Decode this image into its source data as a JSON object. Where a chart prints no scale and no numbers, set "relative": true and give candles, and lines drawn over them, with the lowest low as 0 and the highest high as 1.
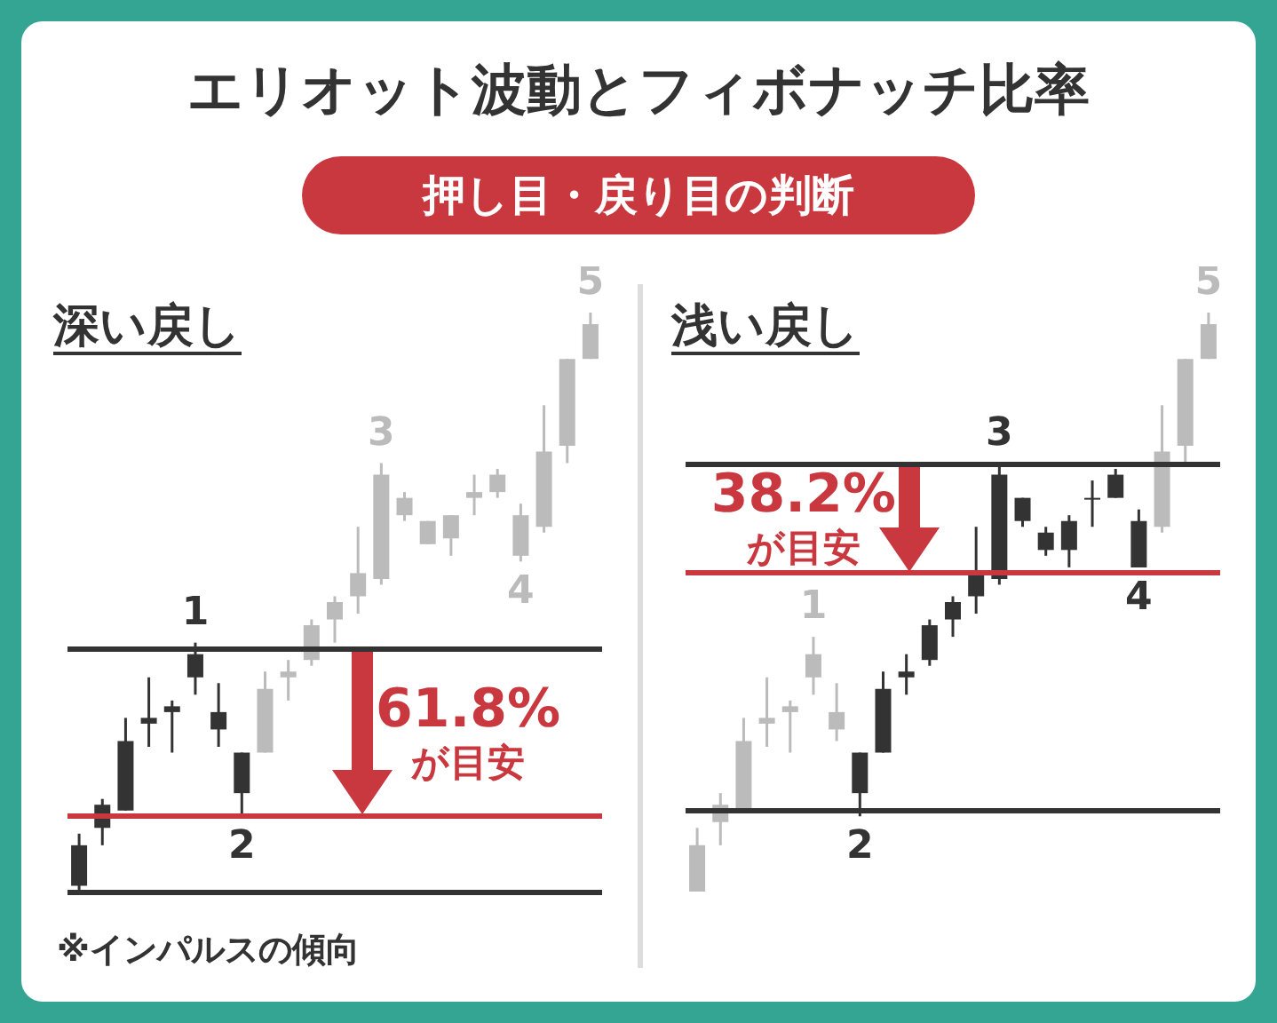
{
  "chart_data": [
    {
      "type": "other",
      "title": "エリオット波動とフィボナッチ比率",
      "subtitle": "押し目・戻り目の判断",
      "color": "#c9383e"
    },
    {
      "type": "candlestick",
      "title": "深い戻し",
      "relative": true,
      "annotations": [
        "※インパルスの傾向"
      ],
      "categories": [
        null,
        null,
        null,
        null,
        null,
        null,
        null,
        null,
        null,
        null,
        null,
        null,
        null,
        null,
        null,
        null,
        null,
        null,
        null,
        null,
        null,
        null,
        null
      ],
      "ohlc": [
        [
          0.01,
          0.1,
          0,
          0.08
        ],
        [
          0.11,
          0.16,
          0.08,
          0.15
        ],
        [
          0.14,
          0.3,
          0.14,
          0.26
        ],
        [
          0.29,
          0.37,
          0.25,
          0.3
        ],
        [
          0.31,
          0.33,
          0.24,
          0.32
        ],
        [
          0.37,
          0.43,
          0.34,
          0.41
        ],
        [
          0.28,
          0.36,
          0.25,
          0.31
        ],
        [
          0.17,
          0.24,
          0.13,
          0.24
        ],
        [
          0.24,
          0.38,
          0.24,
          0.35
        ],
        [
          0.37,
          0.4,
          0.33,
          0.38
        ],
        [
          0.4,
          0.47,
          0.39,
          0.46
        ],
        [
          0.47,
          0.51,
          0.43,
          0.5
        ],
        [
          0.51,
          0.63,
          0.48,
          0.55
        ],
        [
          0.54,
          0.74,
          0.53,
          0.72
        ],
        [
          0.65,
          0.69,
          0.64,
          0.68
        ],
        [
          0.6,
          0.64,
          0.6,
          0.64
        ],
        [
          0.61,
          0.65,
          0.58,
          0.65
        ],
        [
          0.68,
          0.72,
          0.65,
          0.69
        ],
        [
          0.69,
          0.73,
          0.68,
          0.72
        ],
        [
          0.58,
          0.67,
          0.57,
          0.65
        ],
        [
          0.63,
          0.84,
          0.62,
          0.76
        ],
        [
          0.77,
          0.92,
          0.74,
          0.92
        ],
        [
          0.92,
          1.0,
          0.92,
          0.98
        ]
      ],
      "colors": [
        "#333333",
        "#333333",
        "#333333",
        "#333333",
        "#333333",
        "#333333",
        "#333333",
        "#333333",
        "#bbbbbb",
        "#bbbbbb",
        "#bbbbbb",
        "#bbbbbb",
        "#bbbbbb",
        "#bbbbbb",
        "#bbbbbb",
        "#bbbbbb",
        "#bbbbbb",
        "#bbbbbb",
        "#bbbbbb",
        "#bbbbbb",
        "#bbbbbb",
        "#bbbbbb",
        "#bbbbbb"
      ],
      "value_labels": [
        null,
        null,
        null,
        null,
        null,
        "1",
        null,
        "2",
        null,
        null,
        null,
        null,
        null,
        "3",
        null,
        null,
        null,
        null,
        null,
        "4",
        null,
        null,
        "5"
      ],
      "ref_lines": [
        {
          "axis": "y",
          "value": 0.42,
          "color": "#333333"
        },
        {
          "axis": "y",
          "value": 0.13,
          "color": "#c9383e",
          "label": "61.8%\nが目安"
        },
        {
          "axis": "y",
          "value": 0,
          "color": "#333333"
        }
      ]
    },
    {
      "type": "candlestick",
      "title": "浅い戻し",
      "relative": true,
      "categories": [
        null,
        null,
        null,
        null,
        null,
        null,
        null,
        null,
        null,
        null,
        null,
        null,
        null,
        null,
        null,
        null,
        null,
        null,
        null,
        null,
        null,
        null,
        null
      ],
      "ohlc": [
        [
          0.0,
          0.11,
          0,
          0.08
        ],
        [
          0.12,
          0.17,
          0.08,
          0.15
        ],
        [
          0.14,
          0.3,
          0.14,
          0.26
        ],
        [
          0.29,
          0.37,
          0.25,
          0.3
        ],
        [
          0.31,
          0.33,
          0.24,
          0.32
        ],
        [
          0.37,
          0.44,
          0.34,
          0.41
        ],
        [
          0.28,
          0.36,
          0.26,
          0.31
        ],
        [
          0.17,
          0.24,
          0.13,
          0.24
        ],
        [
          0.24,
          0.38,
          0.24,
          0.35
        ],
        [
          0.37,
          0.41,
          0.34,
          0.38
        ],
        [
          0.4,
          0.47,
          0.39,
          0.46
        ],
        [
          0.47,
          0.51,
          0.44,
          0.5
        ],
        [
          0.51,
          0.63,
          0.48,
          0.55
        ],
        [
          0.54,
          0.74,
          0.53,
          0.72
        ],
        [
          0.64,
          0.68,
          0.63,
          0.68
        ],
        [
          0.59,
          0.63,
          0.58,
          0.62
        ],
        [
          0.59,
          0.65,
          0.56,
          0.64
        ],
        [
          0.68,
          0.71,
          0.63,
          0.68
        ],
        [
          0.68,
          0.73,
          0.68,
          0.72
        ],
        [
          0.56,
          0.66,
          0.56,
          0.64
        ],
        [
          0.63,
          0.84,
          0.62,
          0.76
        ],
        [
          0.77,
          0.92,
          0.74,
          0.92
        ],
        [
          0.92,
          1.0,
          0.92,
          0.98
        ]
      ],
      "colors": [
        "#bbbbbb",
        "#bbbbbb",
        "#bbbbbb",
        "#bbbbbb",
        "#bbbbbb",
        "#bbbbbb",
        "#bbbbbb",
        "#333333",
        "#333333",
        "#333333",
        "#333333",
        "#333333",
        "#333333",
        "#333333",
        "#333333",
        "#333333",
        "#333333",
        "#333333",
        "#333333",
        "#333333",
        "#bbbbbb",
        "#bbbbbb",
        "#bbbbbb"
      ],
      "value_labels": [
        null,
        null,
        null,
        null,
        null,
        "1",
        null,
        "2",
        null,
        null,
        null,
        null,
        null,
        "3",
        null,
        null,
        null,
        null,
        null,
        "4",
        null,
        null,
        "5"
      ],
      "ref_lines": [
        {
          "axis": "y",
          "value": 0.74,
          "color": "#333333"
        },
        {
          "axis": "y",
          "value": 0.55,
          "color": "#c9383e",
          "label": "38.2%\nが目安"
        },
        {
          "axis": "y",
          "value": 0.14,
          "color": "#333333"
        }
      ]
    }
  ]
}
